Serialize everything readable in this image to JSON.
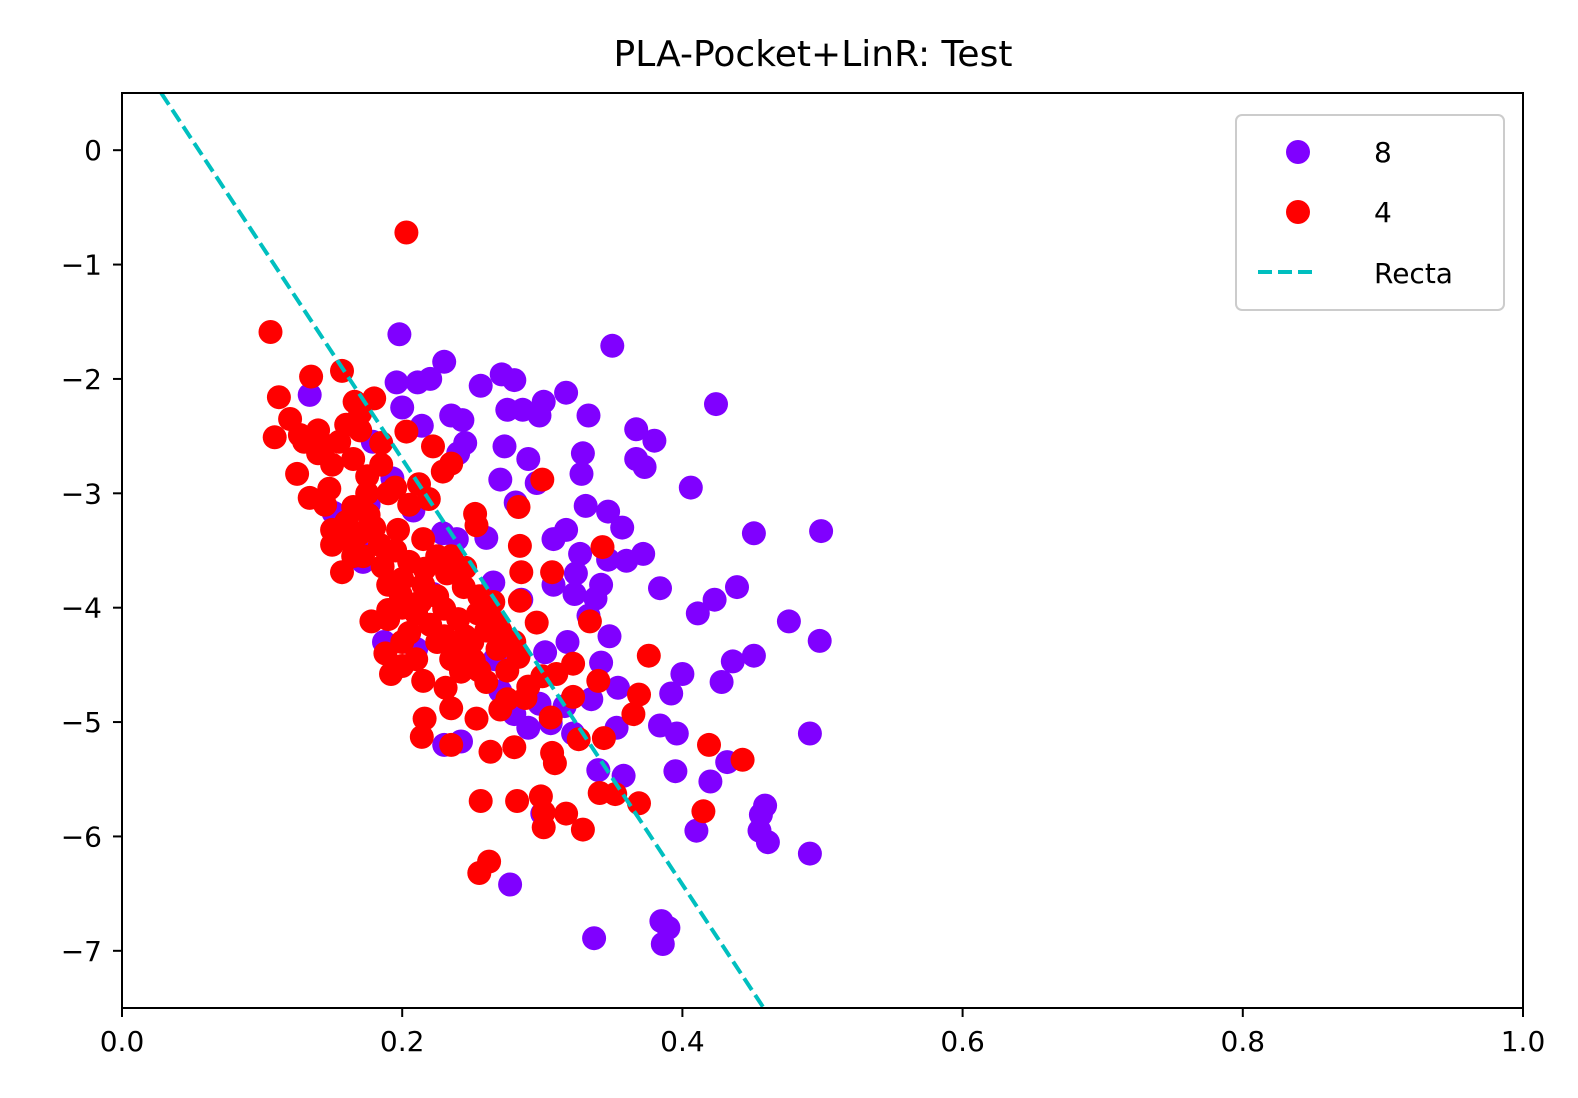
{
  "chart_data": {
    "type": "scatter",
    "title": "PLA-Pocket+LinR: Test",
    "xlabel": "",
    "ylabel": "",
    "xlim": [
      0.0,
      1.0
    ],
    "ylim": [
      -7.5,
      0.5
    ],
    "xticks": [
      "0.0",
      "0.2",
      "0.4",
      "0.6",
      "0.8",
      "1.0"
    ],
    "yticks": [
      "0",
      "−1",
      "−2",
      "−3",
      "−4",
      "−5",
      "−6",
      "−7"
    ],
    "grid": false,
    "legend_position": "top-right",
    "series": [
      {
        "name": "8",
        "kind": "scatter",
        "color": "#8000ff",
        "points": [
          [
            0.134,
            -2.14
          ],
          [
            0.198,
            -1.61
          ],
          [
            0.23,
            -1.85
          ],
          [
            0.211,
            -2.03
          ],
          [
            0.256,
            -2.06
          ],
          [
            0.271,
            -1.96
          ],
          [
            0.28,
            -2.01
          ],
          [
            0.275,
            -2.27
          ],
          [
            0.286,
            -2.27
          ],
          [
            0.301,
            -2.2
          ],
          [
            0.317,
            -2.12
          ],
          [
            0.298,
            -2.32
          ],
          [
            0.35,
            -1.71
          ],
          [
            0.424,
            -2.22
          ],
          [
            0.333,
            -2.32
          ],
          [
            0.367,
            -2.44
          ],
          [
            0.38,
            -2.54
          ],
          [
            0.367,
            -2.7
          ],
          [
            0.373,
            -2.77
          ],
          [
            0.406,
            -2.95
          ],
          [
            0.329,
            -2.65
          ],
          [
            0.328,
            -2.83
          ],
          [
            0.29,
            -2.7
          ],
          [
            0.273,
            -2.59
          ],
          [
            0.27,
            -2.88
          ],
          [
            0.296,
            -2.91
          ],
          [
            0.281,
            -3.08
          ],
          [
            0.331,
            -3.11
          ],
          [
            0.347,
            -3.16
          ],
          [
            0.357,
            -3.3
          ],
          [
            0.317,
            -3.32
          ],
          [
            0.308,
            -3.4
          ],
          [
            0.327,
            -3.53
          ],
          [
            0.347,
            -3.58
          ],
          [
            0.36,
            -3.59
          ],
          [
            0.372,
            -3.53
          ],
          [
            0.324,
            -3.7
          ],
          [
            0.342,
            -3.8
          ],
          [
            0.308,
            -3.8
          ],
          [
            0.384,
            -3.83
          ],
          [
            0.323,
            -3.88
          ],
          [
            0.338,
            -3.92
          ],
          [
            0.285,
            -3.93
          ],
          [
            0.265,
            -3.78
          ],
          [
            0.239,
            -3.4
          ],
          [
            0.26,
            -3.39
          ],
          [
            0.229,
            -3.35
          ],
          [
            0.208,
            -3.15
          ],
          [
            0.176,
            -3.1
          ],
          [
            0.193,
            -2.87
          ],
          [
            0.179,
            -2.55
          ],
          [
            0.2,
            -2.25
          ],
          [
            0.196,
            -2.03
          ],
          [
            0.22,
            -2.0
          ],
          [
            0.214,
            -2.41
          ],
          [
            0.235,
            -2.32
          ],
          [
            0.243,
            -2.36
          ],
          [
            0.245,
            -2.56
          ],
          [
            0.24,
            -2.65
          ],
          [
            0.158,
            -3.2
          ],
          [
            0.151,
            -3.17
          ],
          [
            0.168,
            -3.48
          ],
          [
            0.172,
            -3.6
          ],
          [
            0.198,
            -3.78
          ],
          [
            0.222,
            -3.88
          ],
          [
            0.411,
            -4.05
          ],
          [
            0.423,
            -3.93
          ],
          [
            0.439,
            -3.82
          ],
          [
            0.333,
            -4.07
          ],
          [
            0.348,
            -4.25
          ],
          [
            0.318,
            -4.3
          ],
          [
            0.342,
            -4.48
          ],
          [
            0.302,
            -4.39
          ],
          [
            0.266,
            -4.45
          ],
          [
            0.476,
            -4.12
          ],
          [
            0.498,
            -4.29
          ],
          [
            0.451,
            -4.42
          ],
          [
            0.436,
            -4.47
          ],
          [
            0.4,
            -4.58
          ],
          [
            0.428,
            -4.65
          ],
          [
            0.392,
            -4.75
          ],
          [
            0.354,
            -4.7
          ],
          [
            0.335,
            -4.8
          ],
          [
            0.316,
            -4.86
          ],
          [
            0.298,
            -4.84
          ],
          [
            0.28,
            -4.93
          ],
          [
            0.384,
            -5.03
          ],
          [
            0.396,
            -5.1
          ],
          [
            0.353,
            -5.05
          ],
          [
            0.322,
            -5.1
          ],
          [
            0.306,
            -5.01
          ],
          [
            0.29,
            -5.05
          ],
          [
            0.432,
            -5.35
          ],
          [
            0.42,
            -5.52
          ],
          [
            0.395,
            -5.43
          ],
          [
            0.358,
            -5.47
          ],
          [
            0.34,
            -5.42
          ],
          [
            0.491,
            -5.1
          ],
          [
            0.459,
            -5.73
          ],
          [
            0.456,
            -5.81
          ],
          [
            0.455,
            -5.95
          ],
          [
            0.461,
            -6.05
          ],
          [
            0.491,
            -6.15
          ],
          [
            0.41,
            -5.95
          ],
          [
            0.277,
            -6.42
          ],
          [
            0.337,
            -6.89
          ],
          [
            0.385,
            -6.74
          ],
          [
            0.39,
            -6.8
          ],
          [
            0.386,
            -6.94
          ],
          [
            0.451,
            -3.35
          ],
          [
            0.499,
            -3.33
          ],
          [
            0.23,
            -5.2
          ],
          [
            0.242,
            -5.17
          ],
          [
            0.187,
            -4.3
          ],
          [
            0.21,
            -4.36
          ],
          [
            0.27,
            -4.73
          ],
          [
            0.3,
            -5.8
          ]
        ]
      },
      {
        "name": "4",
        "kind": "scatter",
        "color": "#ff0000",
        "points": [
          [
            0.203,
            -0.72
          ],
          [
            0.106,
            -1.59
          ],
          [
            0.135,
            -1.98
          ],
          [
            0.157,
            -1.93
          ],
          [
            0.112,
            -2.16
          ],
          [
            0.166,
            -2.2
          ],
          [
            0.18,
            -2.17
          ],
          [
            0.109,
            -2.51
          ],
          [
            0.127,
            -2.49
          ],
          [
            0.145,
            -2.58
          ],
          [
            0.16,
            -2.4
          ],
          [
            0.17,
            -2.45
          ],
          [
            0.185,
            -2.56
          ],
          [
            0.203,
            -2.46
          ],
          [
            0.222,
            -2.59
          ],
          [
            0.235,
            -2.74
          ],
          [
            0.212,
            -2.92
          ],
          [
            0.219,
            -3.05
          ],
          [
            0.229,
            -2.81
          ],
          [
            0.3,
            -2.88
          ],
          [
            0.125,
            -2.83
          ],
          [
            0.134,
            -3.04
          ],
          [
            0.148,
            -2.96
          ],
          [
            0.165,
            -3.12
          ],
          [
            0.176,
            -3.19
          ],
          [
            0.15,
            -3.32
          ],
          [
            0.162,
            -3.41
          ],
          [
            0.184,
            -3.45
          ],
          [
            0.197,
            -3.32
          ],
          [
            0.252,
            -3.18
          ],
          [
            0.253,
            -3.28
          ],
          [
            0.283,
            -3.12
          ],
          [
            0.284,
            -3.46
          ],
          [
            0.343,
            -3.47
          ],
          [
            0.157,
            -3.69
          ],
          [
            0.172,
            -3.55
          ],
          [
            0.186,
            -3.64
          ],
          [
            0.2,
            -3.75
          ],
          [
            0.216,
            -3.66
          ],
          [
            0.232,
            -3.7
          ],
          [
            0.244,
            -3.82
          ],
          [
            0.285,
            -3.69
          ],
          [
            0.307,
            -3.69
          ],
          [
            0.199,
            -3.89
          ],
          [
            0.213,
            -3.95
          ],
          [
            0.23,
            -4.01
          ],
          [
            0.254,
            -4.05
          ],
          [
            0.267,
            -4.13
          ],
          [
            0.284,
            -3.94
          ],
          [
            0.296,
            -4.13
          ],
          [
            0.334,
            -4.12
          ],
          [
            0.178,
            -4.12
          ],
          [
            0.19,
            -4.02
          ],
          [
            0.205,
            -4.22
          ],
          [
            0.225,
            -4.3
          ],
          [
            0.24,
            -4.39
          ],
          [
            0.251,
            -4.46
          ],
          [
            0.268,
            -4.36
          ],
          [
            0.283,
            -4.43
          ],
          [
            0.188,
            -4.4
          ],
          [
            0.192,
            -4.58
          ],
          [
            0.2,
            -4.51
          ],
          [
            0.215,
            -4.64
          ],
          [
            0.231,
            -4.7
          ],
          [
            0.242,
            -4.56
          ],
          [
            0.26,
            -4.65
          ],
          [
            0.275,
            -4.8
          ],
          [
            0.29,
            -4.69
          ],
          [
            0.31,
            -4.58
          ],
          [
            0.322,
            -4.49
          ],
          [
            0.34,
            -4.64
          ],
          [
            0.376,
            -4.42
          ],
          [
            0.369,
            -4.76
          ],
          [
            0.365,
            -4.93
          ],
          [
            0.216,
            -4.97
          ],
          [
            0.235,
            -4.88
          ],
          [
            0.253,
            -4.97
          ],
          [
            0.27,
            -4.89
          ],
          [
            0.288,
            -4.79
          ],
          [
            0.306,
            -4.96
          ],
          [
            0.322,
            -4.78
          ],
          [
            0.214,
            -5.13
          ],
          [
            0.235,
            -5.2
          ],
          [
            0.263,
            -5.26
          ],
          [
            0.28,
            -5.22
          ],
          [
            0.307,
            -5.27
          ],
          [
            0.309,
            -5.36
          ],
          [
            0.326,
            -5.15
          ],
          [
            0.344,
            -5.14
          ],
          [
            0.419,
            -5.2
          ],
          [
            0.443,
            -5.33
          ],
          [
            0.256,
            -5.69
          ],
          [
            0.282,
            -5.69
          ],
          [
            0.299,
            -5.65
          ],
          [
            0.301,
            -5.79
          ],
          [
            0.317,
            -5.8
          ],
          [
            0.341,
            -5.62
          ],
          [
            0.352,
            -5.63
          ],
          [
            0.369,
            -5.71
          ],
          [
            0.415,
            -5.78
          ],
          [
            0.301,
            -5.92
          ],
          [
            0.329,
            -5.94
          ],
          [
            0.255,
            -6.32
          ],
          [
            0.262,
            -6.22
          ],
          [
            0.14,
            -2.65
          ],
          [
            0.15,
            -2.75
          ],
          [
            0.175,
            -2.85
          ],
          [
            0.19,
            -3.0
          ],
          [
            0.205,
            -3.1
          ],
          [
            0.16,
            -3.25
          ],
          [
            0.17,
            -3.35
          ],
          [
            0.215,
            -3.4
          ],
          [
            0.225,
            -3.55
          ],
          [
            0.235,
            -3.55
          ],
          [
            0.245,
            -3.65
          ],
          [
            0.255,
            -3.9
          ],
          [
            0.265,
            -3.95
          ],
          [
            0.27,
            -4.2
          ],
          [
            0.245,
            -4.25
          ],
          [
            0.21,
            -4.05
          ],
          [
            0.22,
            -4.15
          ],
          [
            0.2,
            -4.3
          ],
          [
            0.235,
            -4.45
          ],
          [
            0.255,
            -4.55
          ],
          [
            0.275,
            -4.55
          ],
          [
            0.13,
            -2.55
          ],
          [
            0.155,
            -2.55
          ],
          [
            0.165,
            -2.7
          ],
          [
            0.185,
            -2.75
          ],
          [
            0.195,
            -2.95
          ],
          [
            0.145,
            -3.1
          ],
          [
            0.175,
            -3.0
          ],
          [
            0.18,
            -3.3
          ],
          [
            0.195,
            -3.5
          ],
          [
            0.205,
            -3.6
          ],
          [
            0.215,
            -3.8
          ],
          [
            0.225,
            -3.9
          ],
          [
            0.24,
            -4.1
          ],
          [
            0.26,
            -4.2
          ],
          [
            0.28,
            -4.3
          ],
          [
            0.3,
            -4.6
          ],
          [
            0.12,
            -2.35
          ],
          [
            0.14,
            -2.45
          ],
          [
            0.17,
            -2.3
          ],
          [
            0.15,
            -3.45
          ],
          [
            0.165,
            -3.55
          ],
          [
            0.19,
            -3.8
          ],
          [
            0.23,
            -4.25
          ],
          [
            0.25,
            -4.3
          ],
          [
            0.21,
            -4.45
          ],
          [
            0.19,
            -4.1
          ],
          [
            0.2,
            -4.0
          ]
        ]
      },
      {
        "name": "Recta",
        "kind": "line",
        "style": "dashed",
        "color": "#00bfbf",
        "points": [
          [
            0.028,
            0.5
          ],
          [
            0.458,
            -7.5
          ]
        ]
      }
    ]
  }
}
